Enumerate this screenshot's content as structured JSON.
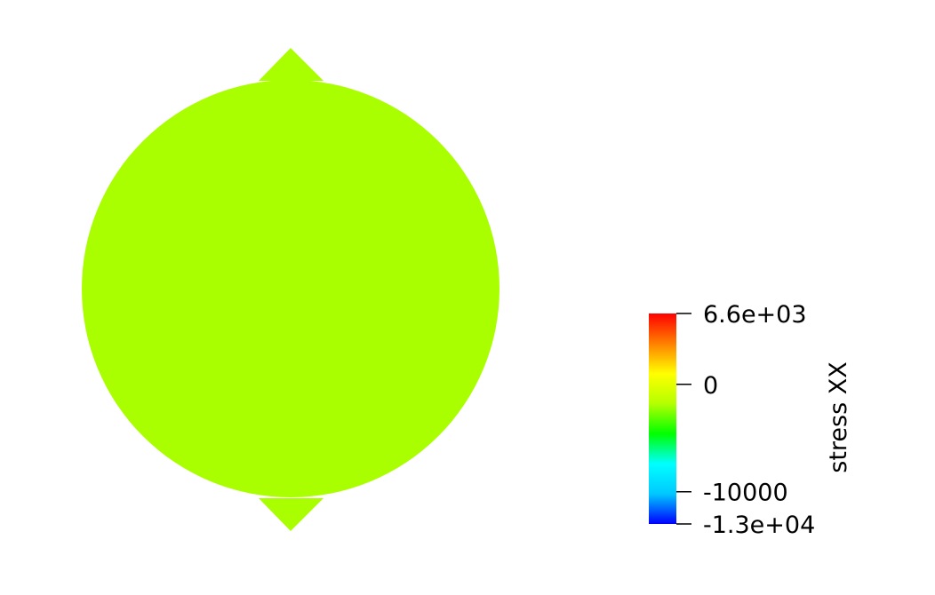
{
  "colors": {
    "background": "#ffffff",
    "field": "#a9ff00",
    "text": "#000000"
  },
  "color_bar": {
    "title": "stress  XX",
    "range": [
      -13000,
      6600
    ],
    "ticks": [
      {
        "value": 6600,
        "label": "6.6e+03"
      },
      {
        "value": 0,
        "label": "0"
      },
      {
        "value": -10000,
        "label": "-10000"
      },
      {
        "value": -13000,
        "label": "-1.3e+04"
      }
    ],
    "stops": [
      "#0000ff",
      "#00c8ff",
      "#00ffff",
      "#00ff00",
      "#b4ff00",
      "#ffff00",
      "#ff8000",
      "#ff0000"
    ]
  }
}
